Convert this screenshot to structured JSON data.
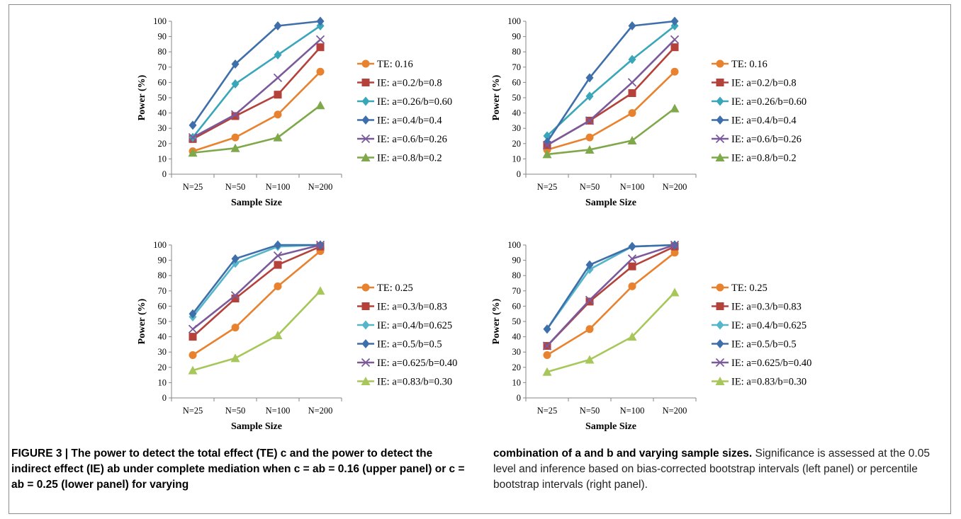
{
  "chart_data": [
    {
      "type": "line",
      "position": "top-left",
      "categories": [
        "N=25",
        "N=50",
        "N=100",
        "N=200"
      ],
      "xlabel": "Sample Size",
      "ylabel": "Power (%)",
      "ylim": [
        0,
        100
      ],
      "yticks": [
        0,
        10,
        20,
        30,
        40,
        50,
        60,
        70,
        80,
        90,
        100
      ],
      "legend": "right",
      "series": [
        {
          "name": "TE: 0.16",
          "values": [
            15,
            24,
            39,
            67
          ],
          "color": "#E8822E",
          "marker": "circle"
        },
        {
          "name": "IE: a=0.2/b=0.8",
          "values": [
            23,
            38,
            52,
            83
          ],
          "color": "#B5413B",
          "marker": "square"
        },
        {
          "name": "IE: a=0.26/b=0.60",
          "values": [
            24,
            59,
            78,
            97
          ],
          "color": "#3AA6B9",
          "marker": "diamond"
        },
        {
          "name": "IE: a=0.4/b=0.4",
          "values": [
            32,
            72,
            97,
            100
          ],
          "color": "#3F6FAA",
          "marker": "diamond"
        },
        {
          "name": "IE: a=0.6/b=0.26",
          "values": [
            24,
            39,
            63,
            88
          ],
          "color": "#7B5A9B",
          "marker": "x"
        },
        {
          "name": "IE: a=0.8/b=0.2",
          "values": [
            14,
            17,
            24,
            45
          ],
          "color": "#7EA84A",
          "marker": "triangle"
        }
      ]
    },
    {
      "type": "line",
      "position": "top-right",
      "categories": [
        "N=25",
        "N=50",
        "N=100",
        "N=200"
      ],
      "xlabel": "Sample Size",
      "ylabel": "Power (%)",
      "ylim": [
        0,
        100
      ],
      "yticks": [
        0,
        10,
        20,
        30,
        40,
        50,
        60,
        70,
        80,
        90,
        100
      ],
      "legend": "right",
      "series": [
        {
          "name": "TE: 0.16",
          "values": [
            16,
            24,
            40,
            67
          ],
          "color": "#E8822E",
          "marker": "circle"
        },
        {
          "name": "IE: a=0.2/b=0.8",
          "values": [
            19,
            35,
            53,
            83
          ],
          "color": "#B5413B",
          "marker": "square"
        },
        {
          "name": "IE: a=0.26/b=0.60",
          "values": [
            25,
            51,
            75,
            97
          ],
          "color": "#3AA6B9",
          "marker": "diamond"
        },
        {
          "name": "IE: a=0.4/b=0.4",
          "values": [
            21,
            63,
            97,
            100
          ],
          "color": "#3F6FAA",
          "marker": "diamond"
        },
        {
          "name": "IE: a=0.6/b=0.26",
          "values": [
            19,
            35,
            60,
            88
          ],
          "color": "#7B5A9B",
          "marker": "x"
        },
        {
          "name": "IE: a=0.8/b=0.2",
          "values": [
            13,
            16,
            22,
            43
          ],
          "color": "#7EA84A",
          "marker": "triangle"
        }
      ]
    },
    {
      "type": "line",
      "position": "bottom-left",
      "categories": [
        "N=25",
        "N=50",
        "N=100",
        "N=200"
      ],
      "xlabel": "Sample Size",
      "ylabel": "Power (%)",
      "ylim": [
        0,
        100
      ],
      "yticks": [
        0,
        10,
        20,
        30,
        40,
        50,
        60,
        70,
        80,
        90,
        100
      ],
      "legend": "right",
      "series": [
        {
          "name": "TE: 0.25",
          "values": [
            28,
            46,
            73,
            96
          ],
          "color": "#E8822E",
          "marker": "circle"
        },
        {
          "name": "IE: a=0.3/b=0.83",
          "values": [
            40,
            65,
            87,
            99
          ],
          "color": "#B5413B",
          "marker": "square"
        },
        {
          "name": "IE: a=0.4/b=0.625",
          "values": [
            53,
            88,
            99,
            100
          ],
          "color": "#55B6C9",
          "marker": "diamond"
        },
        {
          "name": "IE: a=0.5/b=0.5",
          "values": [
            55,
            91,
            100,
            100
          ],
          "color": "#3F6FAA",
          "marker": "diamond"
        },
        {
          "name": "IE: a=0.625/b=0.40",
          "values": [
            45,
            67,
            93,
            100
          ],
          "color": "#7B5A9B",
          "marker": "x"
        },
        {
          "name": "IE: a=0.83/b=0.30",
          "values": [
            18,
            26,
            41,
            70
          ],
          "color": "#A7C75A",
          "marker": "triangle"
        }
      ]
    },
    {
      "type": "line",
      "position": "bottom-right",
      "categories": [
        "N=25",
        "N=50",
        "N=100",
        "N=200"
      ],
      "xlabel": "Sample Size",
      "ylabel": "Power (%)",
      "ylim": [
        0,
        100
      ],
      "yticks": [
        0,
        10,
        20,
        30,
        40,
        50,
        60,
        70,
        80,
        90,
        100
      ],
      "legend": "right",
      "series": [
        {
          "name": "TE: 0.25",
          "values": [
            28,
            45,
            73,
            95
          ],
          "color": "#E8822E",
          "marker": "circle"
        },
        {
          "name": "IE: a=0.3/b=0.83",
          "values": [
            34,
            63,
            86,
            99
          ],
          "color": "#B5413B",
          "marker": "square"
        },
        {
          "name": "IE: a=0.4/b=0.625",
          "values": [
            45,
            84,
            99,
            100
          ],
          "color": "#55B6C9",
          "marker": "diamond"
        },
        {
          "name": "IE: a=0.5/b=0.5",
          "values": [
            45,
            87,
            99,
            100
          ],
          "color": "#3F6FAA",
          "marker": "diamond"
        },
        {
          "name": "IE: a=0.625/b=0.40",
          "values": [
            34,
            64,
            91,
            100
          ],
          "color": "#7B5A9B",
          "marker": "x"
        },
        {
          "name": "IE: a=0.83/b=0.30",
          "values": [
            17,
            25,
            40,
            69
          ],
          "color": "#A7C75A",
          "marker": "triangle"
        }
      ]
    }
  ],
  "caption": {
    "left": {
      "bold": "FIGURE 3 | The power to detect the total effect (TE) c and the power to detect the indirect effect (IE) ab under complete mediation when c = ab = 0.16 (upper panel) or c = ab = 0.25 (lower panel) for varying"
    },
    "right": {
      "bold": "combination of a and b and varying sample sizes.",
      "normal": " Significance is assessed at the 0.05 level and inference based on bias-corrected bootstrap intervals (left panel) or percentile bootstrap intervals (right panel)."
    }
  }
}
